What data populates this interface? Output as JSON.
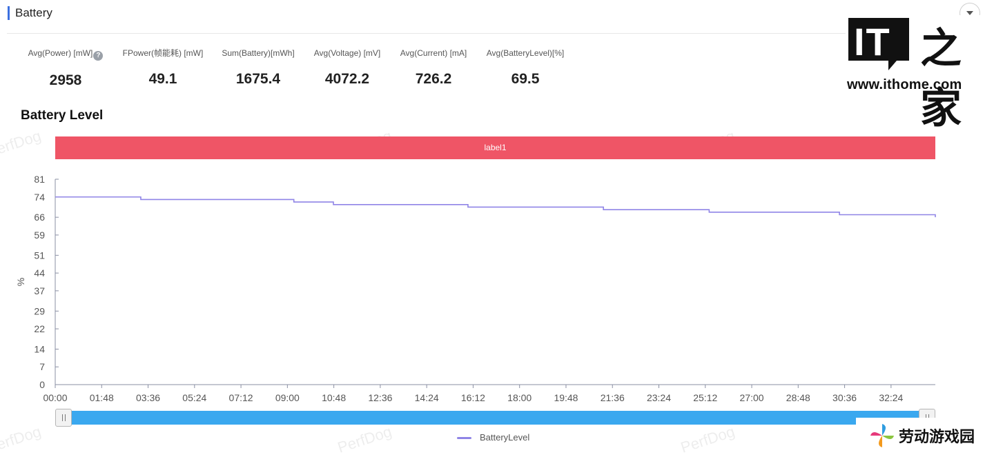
{
  "section": {
    "title": "Battery"
  },
  "stats": [
    {
      "label": "Avg(Power) [mW]",
      "value": "2958",
      "help": true
    },
    {
      "label": "FPower(帧能耗) [mW]",
      "value": "49.1"
    },
    {
      "label": "Sum(Battery)[mWh]",
      "value": "1675.4"
    },
    {
      "label": "Avg(Voltage) [mV]",
      "value": "4072.2"
    },
    {
      "label": "Avg(Current) [mA]",
      "value": "726.2"
    },
    {
      "label": "Avg(BatteryLevel)[%]",
      "value": "69.5"
    }
  ],
  "help_icon": "?",
  "chart_title": "Battery Level",
  "label_band": "label1",
  "watermark": "PerfDog",
  "legend": {
    "label": "BatteryLevel"
  },
  "colors": {
    "line": "#8f84e6",
    "band": "#ef5566",
    "accent": "#3b6fe0",
    "zoom": "#3aa8ef"
  },
  "chart_data": {
    "type": "line",
    "title": "Battery Level",
    "ylabel": "%",
    "xlabel": "",
    "yticks": [
      0,
      7,
      14,
      22,
      29,
      37,
      44,
      51,
      59,
      66,
      74,
      81
    ],
    "ylim": [
      0,
      81
    ],
    "xticks": [
      "00:00",
      "01:48",
      "03:36",
      "05:24",
      "07:12",
      "09:00",
      "10:48",
      "12:36",
      "14:24",
      "16:12",
      "18:00",
      "19:48",
      "21:36",
      "23:24",
      "25:12",
      "27:00",
      "28:48",
      "30:36",
      "32:24"
    ],
    "xlim_seconds": [
      0,
      2047
    ],
    "legend_position": "bottom",
    "grid": false,
    "series": [
      {
        "name": "BatteryLevel",
        "x": [
          "00:00",
          "03:19",
          "09:15",
          "10:47",
          "16:00",
          "21:15",
          "25:21",
          "30:24",
          "34:07"
        ],
        "y": [
          74,
          73,
          72,
          71,
          70,
          69,
          68,
          67,
          66
        ],
        "step": true
      }
    ]
  },
  "logos": {
    "ithome_box": "IT",
    "ithome_glyph": "之家",
    "ithome_url": "www.ithome.com",
    "ldy_text": "劳动游戏园"
  }
}
